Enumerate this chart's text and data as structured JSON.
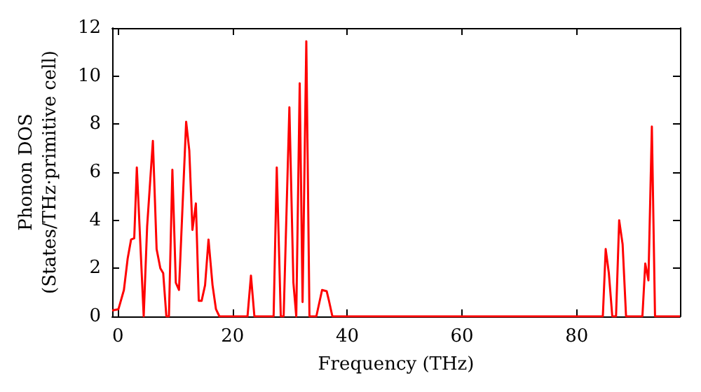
{
  "chart_data": {
    "type": "line",
    "xlabel": "Frequency (THz)",
    "ylabel": "Phonon DOS\n(States/THz·primitive cell)",
    "xlim": [
      -1,
      98
    ],
    "xticks": [
      0,
      20,
      40,
      60,
      80
    ],
    "ylim": [
      0,
      12
    ],
    "yticks": [
      0,
      2,
      4,
      6,
      8,
      10,
      12
    ],
    "grid": false,
    "marker": "none",
    "line_style": "solid",
    "series": [
      {
        "color": "#ff0000",
        "x": [
          -1,
          0.1,
          1.05,
          1.7,
          2.3,
          2.85,
          3.3,
          4.5,
          5.1,
          6.1,
          6.75,
          7.4,
          7.9,
          8.45,
          8.9,
          9.5,
          10.1,
          10.65,
          11.9,
          12.45,
          13.0,
          13.6,
          14.1,
          14.6,
          15.2,
          15.8,
          16.5,
          17.1,
          17.7,
          22.6,
          23.2,
          23.8,
          27.15,
          27.7,
          28.4,
          28.9,
          29.9,
          30.6,
          31.1,
          31.7,
          32.2,
          32.85,
          33.4,
          34.6,
          35.6,
          36.4,
          36.8,
          37.4,
          84.55,
          85.05,
          85.6,
          86.2,
          86.85,
          87.4,
          88.0,
          88.6,
          91.45,
          91.95,
          92.5,
          93.1,
          93.65,
          98
        ],
        "values": [
          0.25,
          0.3,
          1.1,
          2.4,
          3.2,
          3.25,
          6.2,
          0,
          3.75,
          7.3,
          2.8,
          2.0,
          1.8,
          0,
          0,
          6.1,
          1.4,
          1.1,
          8.1,
          6.9,
          3.6,
          4.7,
          0.65,
          0.65,
          1.3,
          3.2,
          1.3,
          0.3,
          0,
          0,
          1.7,
          0,
          0,
          6.2,
          0,
          0,
          8.7,
          1.4,
          0,
          9.7,
          0.6,
          11.45,
          0,
          0,
          1.1,
          1.05,
          0.65,
          0,
          0,
          2.8,
          1.8,
          0,
          0,
          4.0,
          3.0,
          0,
          0,
          2.2,
          1.5,
          7.9,
          0,
          0
        ]
      }
    ]
  }
}
